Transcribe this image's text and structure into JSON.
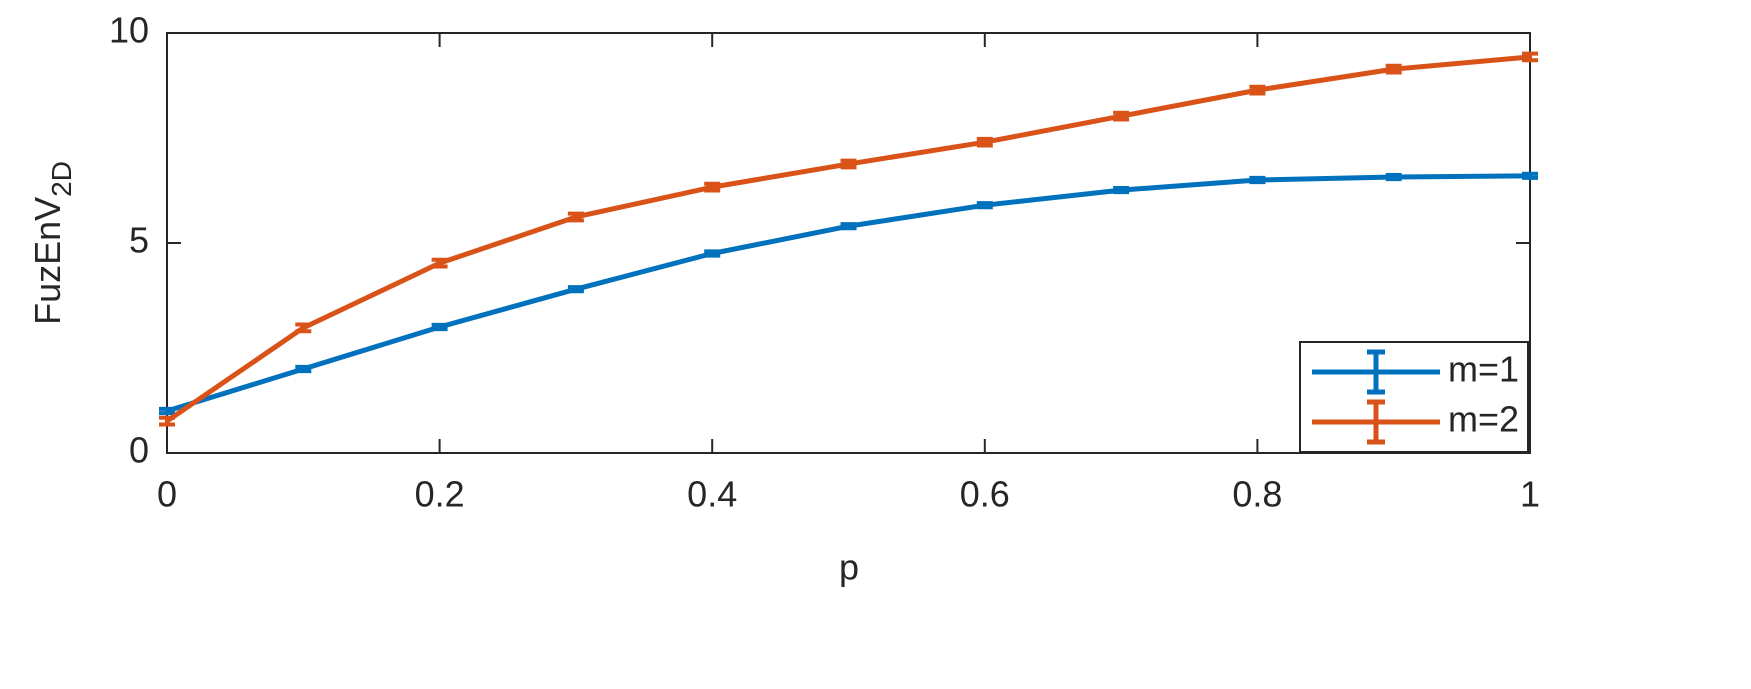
{
  "chart_data": {
    "type": "line",
    "x_label": "p",
    "y_label": "FuzEnV",
    "y_label_subscript": "2D",
    "x": [
      0,
      0.1,
      0.2,
      0.3,
      0.4,
      0.5,
      0.6,
      0.7,
      0.8,
      0.9,
      1
    ],
    "series": [
      {
        "name": "m=1",
        "color": "#0072bd",
        "values": [
          1.0,
          2.0,
          3.0,
          3.9,
          4.75,
          5.4,
          5.9,
          6.26,
          6.5,
          6.57,
          6.6
        ],
        "errors": [
          0.05,
          0.05,
          0.05,
          0.05,
          0.05,
          0.05,
          0.05,
          0.05,
          0.05,
          0.05,
          0.05
        ]
      },
      {
        "name": "m=2",
        "color": "#d95319",
        "values": [
          0.76,
          2.98,
          4.52,
          5.62,
          6.33,
          6.88,
          7.4,
          8.02,
          8.64,
          9.14,
          9.43
        ],
        "errors": [
          0.08,
          0.08,
          0.08,
          0.08,
          0.08,
          0.08,
          0.08,
          0.08,
          0.08,
          0.08,
          0.08
        ]
      }
    ],
    "xlim": [
      0,
      1
    ],
    "xticks": [
      0,
      0.2,
      0.4,
      0.6,
      0.8,
      1
    ],
    "ylim": [
      0,
      10
    ],
    "yticks": [
      0,
      5,
      10
    ],
    "grid": false,
    "legend": "lower right"
  }
}
